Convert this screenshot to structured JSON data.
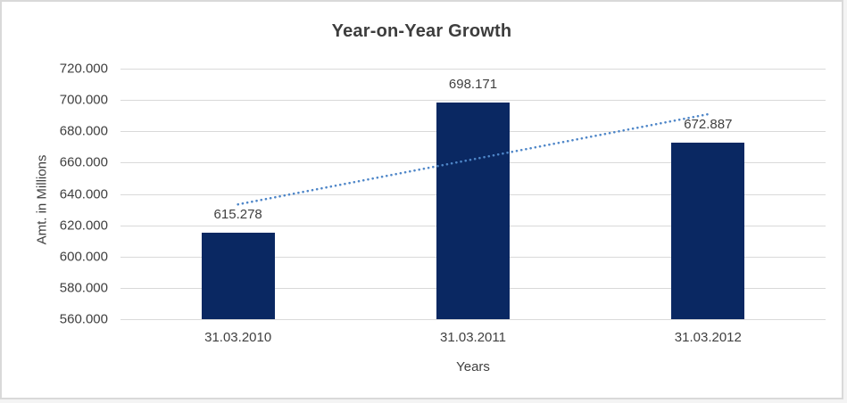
{
  "chart_data": {
    "type": "bar",
    "title": "Year-on-Year Growth",
    "xlabel": "Years",
    "ylabel": "Amt. in Millions",
    "categories": [
      "31.03.2010",
      "31.03.2011",
      "31.03.2012"
    ],
    "values": [
      615.278,
      698.171,
      672.887
    ],
    "data_labels": [
      "615.278",
      "698.171",
      "672.887"
    ],
    "ylim": [
      560,
      720
    ],
    "yticks": [
      {
        "value": 560,
        "label": "560.000"
      },
      {
        "value": 580,
        "label": "580.000"
      },
      {
        "value": 600,
        "label": "600.000"
      },
      {
        "value": 620,
        "label": "620.000"
      },
      {
        "value": 640,
        "label": "640.000"
      },
      {
        "value": 660,
        "label": "660.000"
      },
      {
        "value": 680,
        "label": "680.000"
      },
      {
        "value": 700,
        "label": "700.000"
      },
      {
        "value": 720,
        "label": "720.000"
      }
    ],
    "grid": true,
    "legend": false,
    "trendline": {
      "type": "linear",
      "style": "dotted",
      "start_value": 633.3,
      "end_value": 690.9
    },
    "colors": {
      "bar": "#0a2862",
      "trendline": "#4e86c8",
      "gridline": "#d9d9d9",
      "text": "#404040",
      "title": "#3d3d3d",
      "background": "#ffffff",
      "border": "#d9d9d9"
    }
  }
}
